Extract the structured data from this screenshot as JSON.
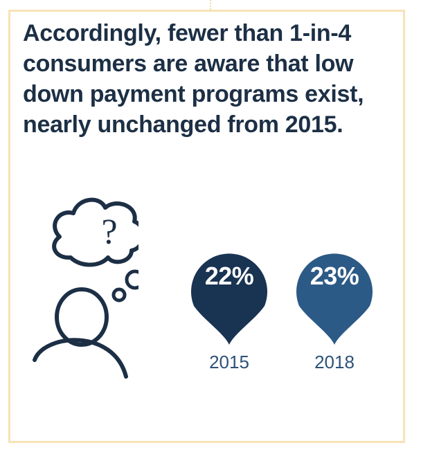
{
  "headline": "Accordingly, fewer than 1-in-4 consumers are aware that low down payment programs exist, nearly unchanged from 2015.",
  "illustration": {
    "thought_symbol": "?",
    "icons": [
      "person-icon",
      "thought-cloud-icon"
    ]
  },
  "colors": {
    "border": "#f7e3b5",
    "headline": "#1c2f45",
    "bubble_2015": "#193352",
    "bubble_2018": "#2c5a86",
    "year_text": "#2d5277",
    "icon_stroke": "#1c2f45"
  },
  "chart_data": {
    "type": "bar",
    "categories": [
      "2015",
      "2018"
    ],
    "values": [
      22,
      23
    ],
    "unit": "%",
    "labels": [
      "22%",
      "23%"
    ],
    "title": "Accordingly, fewer than 1-in-4 consumers are aware that low down payment programs exist, nearly unchanged from 2015."
  }
}
